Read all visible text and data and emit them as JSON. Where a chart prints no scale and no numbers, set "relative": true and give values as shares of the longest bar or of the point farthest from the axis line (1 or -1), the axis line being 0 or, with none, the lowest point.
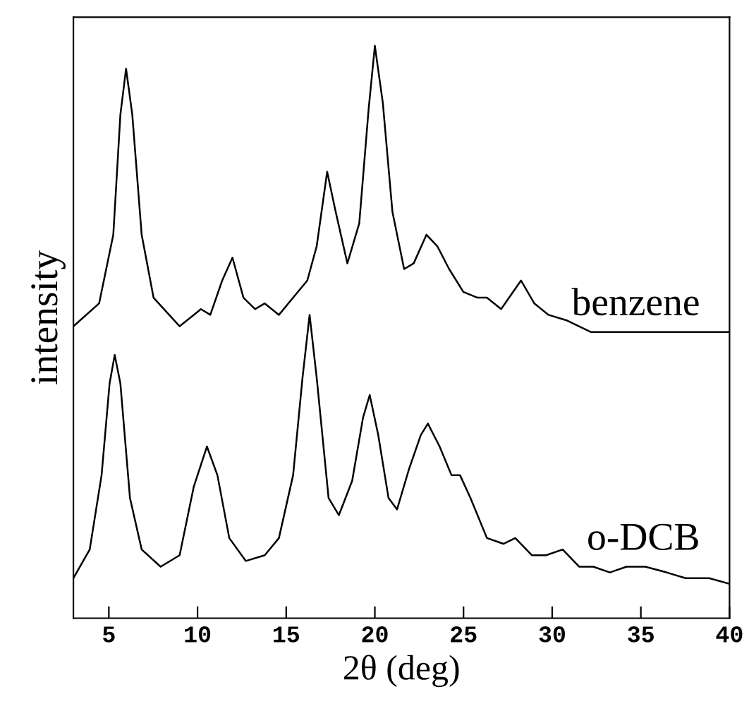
{
  "chart_data": {
    "type": "line",
    "relative": true,
    "xlabel": "2θ (deg)",
    "ylabel": "intensity",
    "xlim": [
      3,
      40
    ],
    "xticks": [
      5,
      10,
      15,
      20,
      25,
      30,
      35,
      40
    ],
    "legend": false,
    "grid": false,
    "marker": "none",
    "line_style": "solid",
    "series": [
      {
        "name": "benzene",
        "color": "#000000",
        "x": [
          3.0,
          4.45,
          5.25,
          5.65,
          5.97,
          6.32,
          6.85,
          7.52,
          8.99,
          9.79,
          10.19,
          10.72,
          11.39,
          11.97,
          12.59,
          13.25,
          13.79,
          14.59,
          15.39,
          16.19,
          16.72,
          17.31,
          17.79,
          18.45,
          19.12,
          19.65,
          20.0,
          20.45,
          20.99,
          21.65,
          22.19,
          22.91,
          23.52,
          24.19,
          24.99,
          25.79,
          26.32,
          27.12,
          28.24,
          28.99,
          29.79,
          30.85,
          32.19,
          33.52,
          34.85,
          36.19,
          37.52,
          38.85,
          40.0
        ],
        "values": [
          0.51,
          0.55,
          0.67,
          0.88,
          0.96,
          0.88,
          0.67,
          0.56,
          0.51,
          0.53,
          0.54,
          0.53,
          0.59,
          0.63,
          0.56,
          0.54,
          0.55,
          0.53,
          0.56,
          0.59,
          0.65,
          0.78,
          0.71,
          0.62,
          0.69,
          0.89,
          1.0,
          0.9,
          0.71,
          0.61,
          0.62,
          0.67,
          0.65,
          0.61,
          0.57,
          0.56,
          0.56,
          0.54,
          0.59,
          0.55,
          0.53,
          0.52,
          0.5,
          0.5,
          0.5,
          0.5,
          0.5,
          0.5,
          0.5
        ]
      },
      {
        "name": "o-DCB",
        "color": "#000000",
        "x": [
          3.0,
          3.92,
          4.59,
          5.04,
          5.33,
          5.65,
          6.19,
          6.85,
          7.92,
          8.99,
          9.79,
          10.53,
          11.12,
          11.79,
          12.72,
          13.79,
          14.59,
          15.39,
          15.92,
          16.32,
          16.72,
          17.39,
          17.97,
          18.72,
          19.33,
          19.71,
          20.19,
          20.77,
          21.25,
          21.92,
          22.59,
          22.99,
          23.65,
          24.32,
          24.8,
          25.39,
          26.32,
          27.25,
          27.92,
          28.85,
          29.65,
          30.59,
          31.52,
          32.32,
          33.25,
          34.19,
          35.25,
          36.45,
          37.52,
          38.85,
          40.0
        ],
        "values": [
          0.07,
          0.12,
          0.25,
          0.41,
          0.46,
          0.41,
          0.21,
          0.12,
          0.09,
          0.11,
          0.23,
          0.3,
          0.25,
          0.14,
          0.1,
          0.11,
          0.14,
          0.25,
          0.42,
          0.53,
          0.42,
          0.21,
          0.18,
          0.24,
          0.35,
          0.39,
          0.32,
          0.21,
          0.19,
          0.26,
          0.32,
          0.34,
          0.3,
          0.25,
          0.25,
          0.21,
          0.14,
          0.13,
          0.14,
          0.11,
          0.11,
          0.12,
          0.09,
          0.09,
          0.08,
          0.09,
          0.09,
          0.08,
          0.07,
          0.07,
          0.06
        ]
      }
    ]
  }
}
